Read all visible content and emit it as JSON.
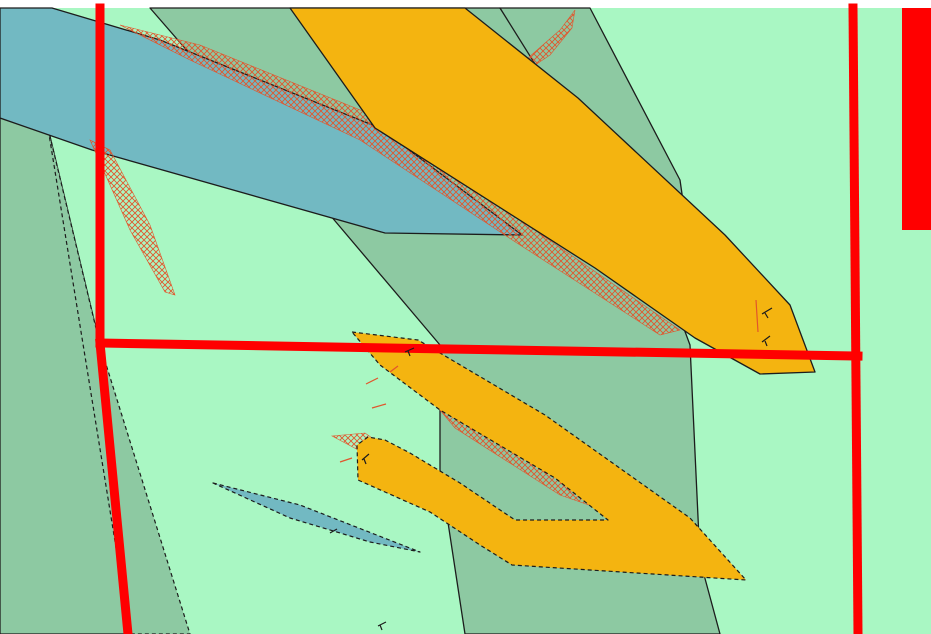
{
  "map": {
    "colors": {
      "background": "#a9f7c3",
      "unit_green": "#8dc9a2",
      "unit_blue": "#72b9c2",
      "unit_orange": "#f4b410",
      "hatch": "#e1552c",
      "boundary": "#ff0000",
      "outline": "#1c1c1c"
    },
    "legend_swatch": {
      "color": "#ff0000"
    }
  }
}
